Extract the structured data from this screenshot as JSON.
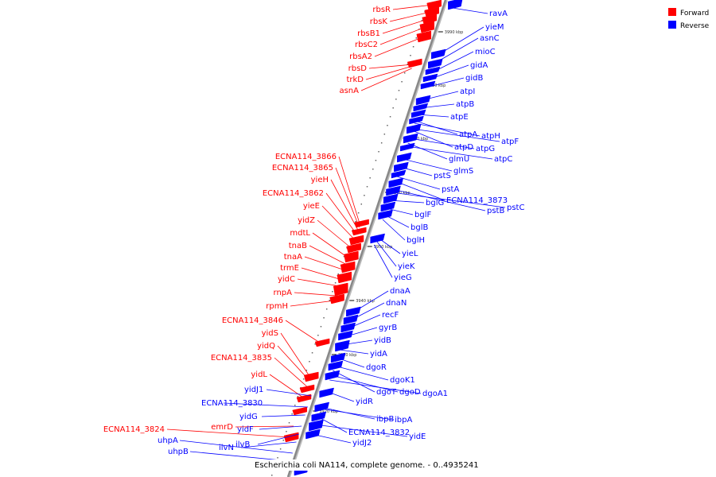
{
  "caption": "Escherichia coli NA114, complete genome. - 0..4935241",
  "legend": [
    {
      "label": "Forward",
      "color": "#ff0000"
    },
    {
      "label": "Reverse",
      "color": "#0000ff"
    }
  ],
  "colors": {
    "forward": "#ff0000",
    "reverse": "#0000ff",
    "backbone": "#888888"
  },
  "ticks": [
    "3990 kbp",
    "3980 kbp",
    "3970 kbp",
    "3960 kbp",
    "3950 kbp",
    "3940 kbp",
    "3930 kbp",
    "3920 kbp"
  ],
  "forward_genes": [
    "rbsR",
    "rbsK",
    "rbsB1",
    "rbsC2",
    "rbsA2",
    "rbsD",
    "trkD",
    "asnA",
    "ECNA114_3866",
    "ECNA114_3865",
    "yieH",
    "ECNA114_3862",
    "yieE",
    "yidZ",
    "mdtL",
    "tnaB",
    "tnaA",
    "trmE",
    "yidC",
    "rnpA",
    "rpmH",
    "ECNA114_3846",
    "yidS",
    "yidQ",
    "ECNA114_3835",
    "yidL",
    "ECNA114_3824",
    "emrD"
  ],
  "reverse_genes": [
    "ravA",
    "yieM",
    "asnC",
    "mioC",
    "gidA",
    "gidB",
    "atpI",
    "atpB",
    "atpE",
    "atpA",
    "atpH",
    "atpF",
    "atpD",
    "atpG",
    "glmU",
    "atpC",
    "glmS",
    "pstS",
    "pstA",
    "ECNA114_3873",
    "pstB",
    "pstC",
    "bglG",
    "bglF",
    "bglB",
    "bglH",
    "yieL",
    "yieK",
    "yieG",
    "dnaA",
    "dnaN",
    "recF",
    "gyrB",
    "yidB",
    "yidA",
    "dgoR",
    "dgoK1",
    "dgoT",
    "dgoD",
    "dgoA1",
    "yidR",
    "ibpB",
    "ibpA",
    "ECNA114_3832",
    "yidE",
    "yidJ2",
    "yidJ1",
    "ECNA114_3830",
    "yidG",
    "yidF",
    "ilvB",
    "ilvN",
    "uhpA",
    "uhpB"
  ]
}
